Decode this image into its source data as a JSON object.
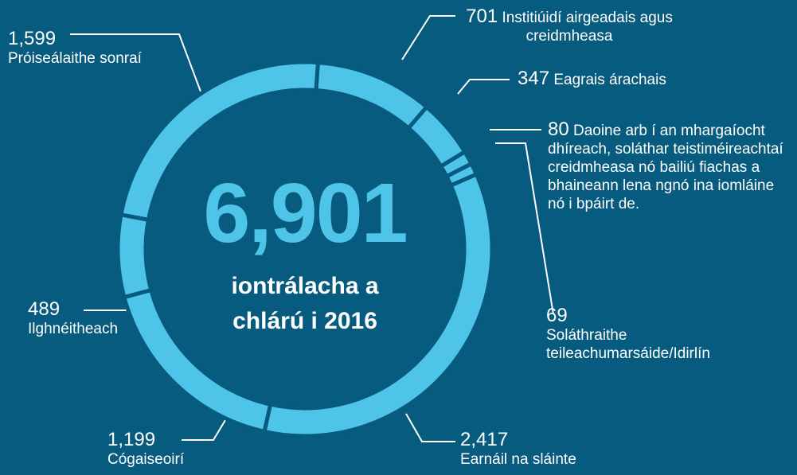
{
  "chart_data": {
    "type": "pie",
    "donut": true,
    "color": "#4ec4e8",
    "categories": [
      "Institiúidí airgeadais agus creidmheasa",
      "Eagrais árachais",
      "Daoine arb í an mhargaíocht dhíreach, soláthar teistiméireachtaí creidmheasa nó bailiú fiachas a bhaineann lena ngnó ina iomláine nó i bpáirt de.",
      "Soláthraithe teileachumarsáide/Idirlín",
      "Earnáil na sláinte",
      "Cógaiseoirí",
      "Ilghnéitheach",
      "Próiseálaithe sonraí"
    ],
    "values": [
      701,
      347,
      80,
      69,
      2417,
      1199,
      489,
      1599
    ],
    "value_labels": [
      "701",
      "347",
      "80",
      "69",
      "2,417",
      "1,199",
      "489",
      "1,599"
    ],
    "total": {
      "value": 6901,
      "label": "6,901"
    },
    "subtitle": "iontrálacha a chlárú i 2016"
  }
}
